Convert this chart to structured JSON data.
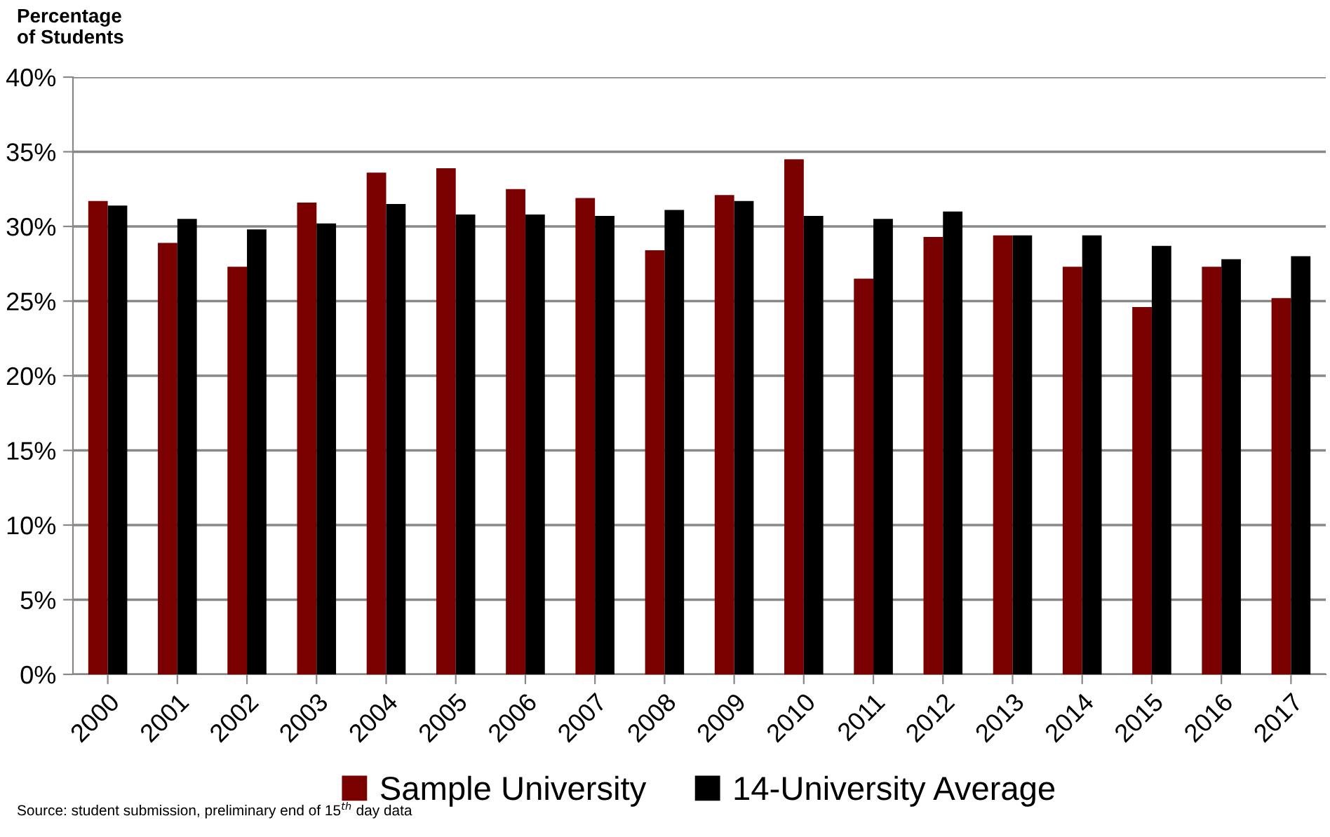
{
  "chart_data": {
    "type": "bar",
    "ylabel": "Percentage\nof Students",
    "categories": [
      "2000",
      "2001",
      "2002",
      "2003",
      "2004",
      "2005",
      "2006",
      "2007",
      "2008",
      "2009",
      "2010",
      "2011",
      "2012",
      "2013",
      "2014",
      "2015",
      "2016",
      "2017"
    ],
    "series": [
      {
        "name": "Sample University",
        "color": "#7b0000",
        "values": [
          31.7,
          28.9,
          27.3,
          31.6,
          33.6,
          33.9,
          32.5,
          31.9,
          28.4,
          32.1,
          34.5,
          26.5,
          29.3,
          29.4,
          27.3,
          24.6,
          27.3,
          25.2
        ]
      },
      {
        "name": "14-University Average",
        "color": "#000000",
        "values": [
          31.4,
          30.5,
          29.8,
          30.2,
          31.5,
          30.8,
          30.8,
          30.7,
          31.1,
          31.7,
          30.7,
          30.5,
          31.0,
          29.4,
          29.4,
          28.7,
          27.8,
          28.0
        ]
      }
    ],
    "ylim": [
      0,
      40
    ],
    "yticks": [
      {
        "value": 0,
        "label": "0%"
      },
      {
        "value": 5,
        "label": "5%"
      },
      {
        "value": 10,
        "label": "10%"
      },
      {
        "value": 15,
        "label": "15%"
      },
      {
        "value": 20,
        "label": "20%"
      },
      {
        "value": 25,
        "label": "25%"
      },
      {
        "value": 30,
        "label": "30%"
      },
      {
        "value": 35,
        "label": "35%"
      },
      {
        "value": 40,
        "label": "40%"
      }
    ],
    "grid": "y",
    "legend": "bottom",
    "annotations": [
      "Source: student submission, preliminary end of 15$^{th}$ day data"
    ]
  }
}
